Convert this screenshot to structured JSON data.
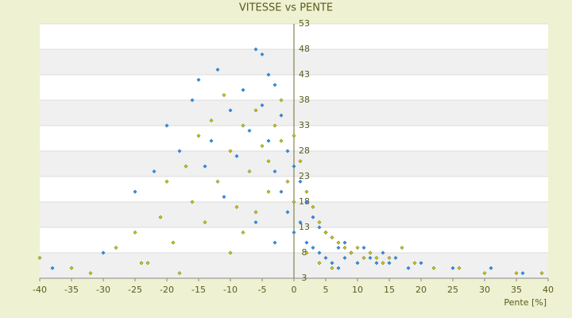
{
  "chart_data": {
    "type": "scatter",
    "title": "VITESSE vs PENTE",
    "x_label": "Pente [%]",
    "xlim": [
      -40,
      40
    ],
    "xticks": [
      -40,
      -35,
      -30,
      -25,
      -20,
      -15,
      -10,
      -5,
      0,
      5,
      10,
      15,
      20,
      25,
      30,
      35,
      40
    ],
    "ylim": [
      3,
      53
    ],
    "yticks": [
      3,
      8,
      13,
      18,
      23,
      28,
      33,
      38,
      43,
      48,
      53
    ],
    "grid": true,
    "series": [
      {
        "color": "#2f8fe6",
        "x": [
          -38,
          -30,
          -25,
          -22,
          -20,
          -18,
          -16,
          -15,
          -14,
          -13,
          -12,
          -11,
          -10,
          -9,
          -8,
          -7,
          -6,
          -5,
          -5,
          -4,
          -4,
          -3,
          -3,
          -2,
          -2,
          -1,
          -1,
          0,
          0,
          1,
          1,
          2,
          2,
          3,
          3,
          4,
          4,
          5,
          5,
          6,
          6,
          7,
          7,
          8,
          8,
          9,
          10,
          11,
          12,
          13,
          14,
          15,
          16,
          18,
          20,
          25,
          31,
          36,
          -6,
          -3
        ],
        "values": [
          5,
          8,
          20,
          24,
          33,
          28,
          38,
          42,
          25,
          30,
          44,
          19,
          36,
          27,
          40,
          32,
          48,
          37,
          47,
          43,
          30,
          41,
          24,
          35,
          20,
          28,
          16,
          25,
          12,
          22,
          14,
          18,
          10,
          15,
          9,
          13,
          8,
          12,
          7,
          11,
          6,
          9,
          5,
          10,
          7,
          8,
          6,
          9,
          7,
          6,
          8,
          6,
          7,
          5,
          6,
          5,
          5,
          4,
          14,
          10
        ]
      },
      {
        "color": "#c4c41a",
        "x": [
          -40,
          -35,
          -32,
          -28,
          -25,
          -23,
          -21,
          -20,
          -19,
          -17,
          -16,
          -15,
          -14,
          -13,
          -12,
          -11,
          -10,
          -9,
          -8,
          -7,
          -6,
          -5,
          -4,
          -3,
          -2,
          -1,
          0,
          0,
          1,
          2,
          3,
          4,
          5,
          6,
          7,
          8,
          9,
          10,
          11,
          12,
          13,
          14,
          15,
          17,
          19,
          22,
          26,
          30,
          35,
          39,
          -10,
          -8,
          -6,
          -4,
          -2,
          2,
          4,
          6,
          -18,
          -24
        ],
        "values": [
          7,
          5,
          4,
          9,
          12,
          6,
          15,
          22,
          10,
          25,
          18,
          31,
          14,
          34,
          22,
          39,
          28,
          17,
          33,
          24,
          36,
          29,
          26,
          33,
          30,
          22,
          31,
          18,
          26,
          20,
          17,
          14,
          12,
          11,
          10,
          9,
          8,
          9,
          7,
          8,
          7,
          6,
          7,
          9,
          6,
          5,
          5,
          4,
          4,
          4,
          8,
          12,
          16,
          20,
          38,
          8,
          6,
          5,
          4,
          6
        ]
      }
    ]
  }
}
